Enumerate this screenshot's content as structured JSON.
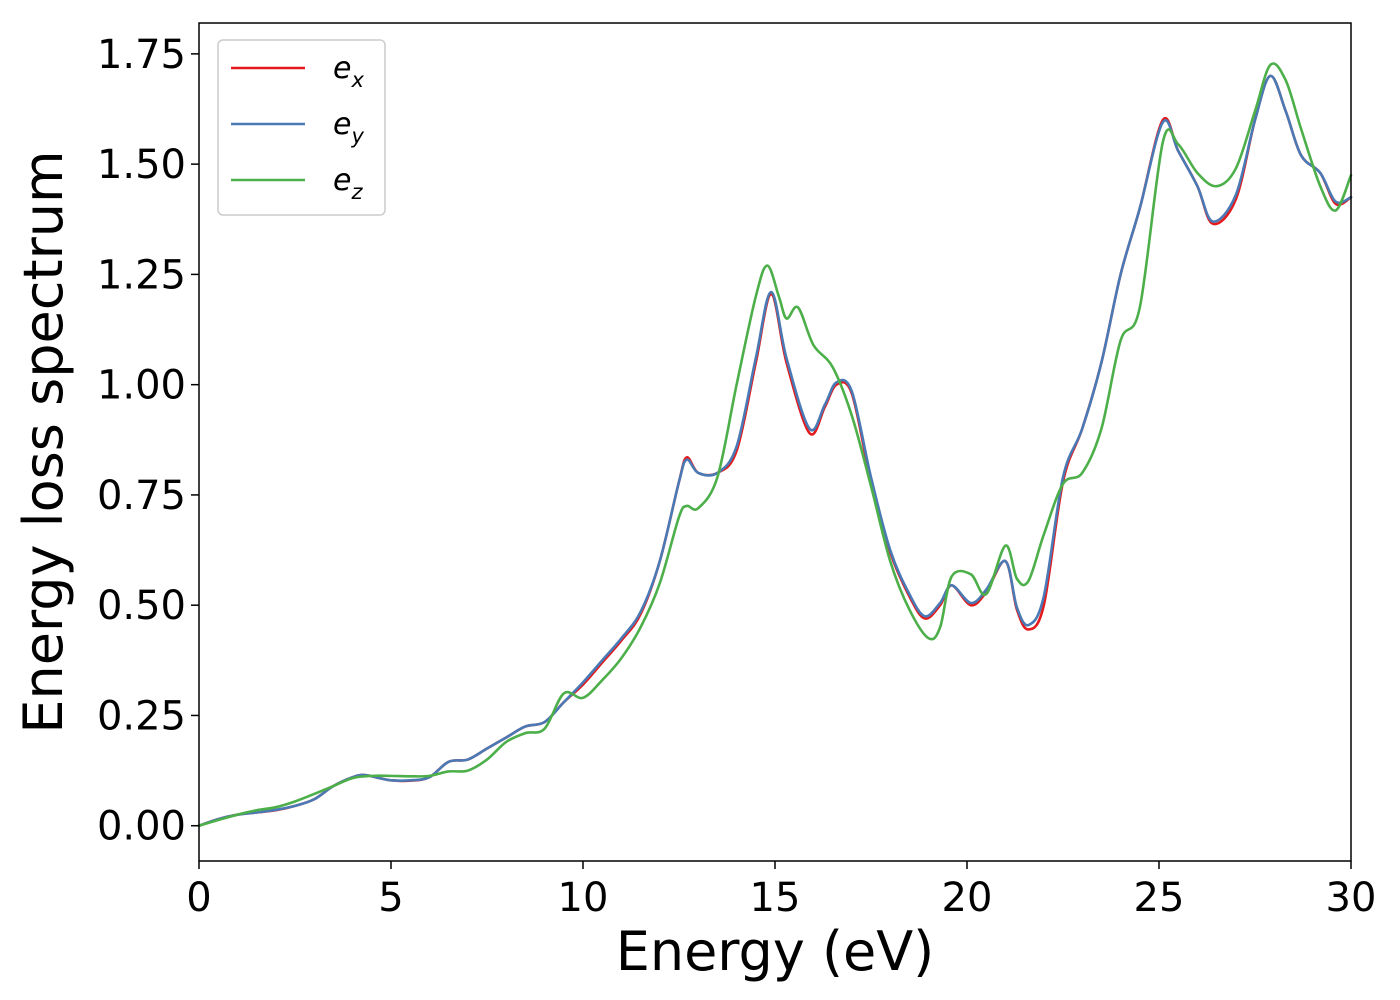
{
  "chart_data": {
    "type": "line",
    "title": "",
    "xlabel": "Energy (eV)",
    "ylabel": "Energy loss spectrum",
    "xlim": [
      0,
      30
    ],
    "ylim": [
      -0.08,
      1.82
    ],
    "xticks": [
      0,
      5,
      10,
      15,
      20,
      25,
      30
    ],
    "xtick_labels": [
      "0",
      "5",
      "10",
      "15",
      "20",
      "25",
      "30"
    ],
    "yticks": [
      0,
      0.25,
      0.5,
      0.75,
      1.0,
      1.25,
      1.5,
      1.75
    ],
    "ytick_labels": [
      "0.00",
      "0.25",
      "0.50",
      "0.75",
      "1.00",
      "1.25",
      "1.50",
      "1.75"
    ],
    "grid": false,
    "legend_position": "top-left",
    "series": [
      {
        "name": "e_x",
        "legend_base": "e",
        "legend_sub": "x",
        "color": "#e41a1c",
        "points": [
          [
            0,
            0
          ],
          [
            0.5,
            0.015
          ],
          [
            1,
            0.025
          ],
          [
            1.5,
            0.03
          ],
          [
            2,
            0.035
          ],
          [
            2.5,
            0.045
          ],
          [
            3,
            0.06
          ],
          [
            3.5,
            0.09
          ],
          [
            4,
            0.11
          ],
          [
            4.3,
            0.115
          ],
          [
            4.7,
            0.108
          ],
          [
            5,
            0.103
          ],
          [
            5.5,
            0.102
          ],
          [
            6,
            0.11
          ],
          [
            6.5,
            0.145
          ],
          [
            7,
            0.15
          ],
          [
            7.5,
            0.175
          ],
          [
            8,
            0.2
          ],
          [
            8.5,
            0.225
          ],
          [
            9,
            0.235
          ],
          [
            9.5,
            0.28
          ],
          [
            10,
            0.32
          ],
          [
            10.5,
            0.37
          ],
          [
            11,
            0.42
          ],
          [
            11.5,
            0.48
          ],
          [
            12,
            0.6
          ],
          [
            12.5,
            0.78
          ],
          [
            12.7,
            0.835
          ],
          [
            13,
            0.8
          ],
          [
            13.5,
            0.8
          ],
          [
            14,
            0.85
          ],
          [
            14.5,
            1.05
          ],
          [
            14.9,
            1.205
          ],
          [
            15.3,
            1.05
          ],
          [
            15.9,
            0.89
          ],
          [
            16.3,
            0.95
          ],
          [
            16.6,
            1.0
          ],
          [
            17,
            0.98
          ],
          [
            17.5,
            0.78
          ],
          [
            18,
            0.62
          ],
          [
            18.5,
            0.52
          ],
          [
            18.9,
            0.47
          ],
          [
            19.3,
            0.5
          ],
          [
            19.6,
            0.545
          ],
          [
            20.1,
            0.5
          ],
          [
            20.5,
            0.53
          ],
          [
            21,
            0.6
          ],
          [
            21.3,
            0.49
          ],
          [
            21.6,
            0.445
          ],
          [
            22,
            0.5
          ],
          [
            22.5,
            0.78
          ],
          [
            23,
            0.9
          ],
          [
            23.5,
            1.05
          ],
          [
            24,
            1.25
          ],
          [
            24.5,
            1.4
          ],
          [
            25.1,
            1.6
          ],
          [
            25.5,
            1.53
          ],
          [
            26,
            1.45
          ],
          [
            26.4,
            1.365
          ],
          [
            27,
            1.42
          ],
          [
            27.5,
            1.6
          ],
          [
            27.9,
            1.7
          ],
          [
            28.3,
            1.62
          ],
          [
            28.7,
            1.52
          ],
          [
            29.2,
            1.48
          ],
          [
            29.6,
            1.41
          ],
          [
            30,
            1.425
          ]
        ]
      },
      {
        "name": "e_y",
        "legend_base": "e",
        "legend_sub": "y",
        "color": "#4a7ab5",
        "points": [
          [
            0,
            0
          ],
          [
            0.5,
            0.015
          ],
          [
            1,
            0.025
          ],
          [
            1.5,
            0.03
          ],
          [
            2,
            0.036
          ],
          [
            2.5,
            0.045
          ],
          [
            3,
            0.06
          ],
          [
            3.5,
            0.09
          ],
          [
            4,
            0.11
          ],
          [
            4.3,
            0.115
          ],
          [
            4.7,
            0.108
          ],
          [
            5,
            0.103
          ],
          [
            5.5,
            0.103
          ],
          [
            6,
            0.11
          ],
          [
            6.5,
            0.145
          ],
          [
            7,
            0.15
          ],
          [
            7.5,
            0.175
          ],
          [
            8,
            0.2
          ],
          [
            8.5,
            0.225
          ],
          [
            9,
            0.235
          ],
          [
            9.5,
            0.28
          ],
          [
            10,
            0.325
          ],
          [
            10.5,
            0.375
          ],
          [
            11,
            0.425
          ],
          [
            11.5,
            0.485
          ],
          [
            12,
            0.6
          ],
          [
            12.5,
            0.78
          ],
          [
            12.7,
            0.83
          ],
          [
            13,
            0.8
          ],
          [
            13.5,
            0.8
          ],
          [
            14,
            0.86
          ],
          [
            14.5,
            1.06
          ],
          [
            14.9,
            1.21
          ],
          [
            15.3,
            1.06
          ],
          [
            15.9,
            0.9
          ],
          [
            16.3,
            0.955
          ],
          [
            16.6,
            1.005
          ],
          [
            17,
            0.985
          ],
          [
            17.5,
            0.79
          ],
          [
            18,
            0.625
          ],
          [
            18.5,
            0.525
          ],
          [
            18.9,
            0.475
          ],
          [
            19.3,
            0.505
          ],
          [
            19.6,
            0.545
          ],
          [
            20.1,
            0.505
          ],
          [
            20.5,
            0.535
          ],
          [
            21,
            0.6
          ],
          [
            21.3,
            0.495
          ],
          [
            21.6,
            0.455
          ],
          [
            22,
            0.52
          ],
          [
            22.5,
            0.79
          ],
          [
            23,
            0.9
          ],
          [
            23.5,
            1.05
          ],
          [
            24,
            1.25
          ],
          [
            24.5,
            1.4
          ],
          [
            25.1,
            1.595
          ],
          [
            25.5,
            1.53
          ],
          [
            26,
            1.45
          ],
          [
            26.4,
            1.37
          ],
          [
            27,
            1.43
          ],
          [
            27.5,
            1.6
          ],
          [
            27.9,
            1.7
          ],
          [
            28.3,
            1.62
          ],
          [
            28.7,
            1.52
          ],
          [
            29.2,
            1.48
          ],
          [
            29.6,
            1.415
          ],
          [
            30,
            1.425
          ]
        ]
      },
      {
        "name": "e_z",
        "legend_base": "e",
        "legend_sub": "z",
        "color": "#4daf4a",
        "points": [
          [
            0,
            0
          ],
          [
            0.5,
            0.013
          ],
          [
            1,
            0.025
          ],
          [
            1.5,
            0.035
          ],
          [
            2,
            0.042
          ],
          [
            2.5,
            0.055
          ],
          [
            3,
            0.072
          ],
          [
            3.5,
            0.09
          ],
          [
            4,
            0.108
          ],
          [
            4.5,
            0.113
          ],
          [
            5,
            0.113
          ],
          [
            5.5,
            0.112
          ],
          [
            6,
            0.113
          ],
          [
            6.5,
            0.123
          ],
          [
            7,
            0.125
          ],
          [
            7.5,
            0.15
          ],
          [
            8,
            0.19
          ],
          [
            8.5,
            0.21
          ],
          [
            9,
            0.22
          ],
          [
            9.5,
            0.3
          ],
          [
            10,
            0.29
          ],
          [
            10.5,
            0.33
          ],
          [
            11,
            0.38
          ],
          [
            11.5,
            0.45
          ],
          [
            12,
            0.55
          ],
          [
            12.5,
            0.7
          ],
          [
            12.7,
            0.725
          ],
          [
            13,
            0.72
          ],
          [
            13.5,
            0.79
          ],
          [
            14,
            1.0
          ],
          [
            14.5,
            1.2
          ],
          [
            14.8,
            1.27
          ],
          [
            15.1,
            1.2
          ],
          [
            15.3,
            1.15
          ],
          [
            15.6,
            1.175
          ],
          [
            16,
            1.09
          ],
          [
            16.5,
            1.04
          ],
          [
            17,
            0.93
          ],
          [
            17.5,
            0.77
          ],
          [
            18,
            0.6
          ],
          [
            18.5,
            0.49
          ],
          [
            19,
            0.425
          ],
          [
            19.3,
            0.45
          ],
          [
            19.6,
            0.565
          ],
          [
            20.1,
            0.57
          ],
          [
            20.5,
            0.525
          ],
          [
            21,
            0.635
          ],
          [
            21.3,
            0.56
          ],
          [
            21.6,
            0.555
          ],
          [
            22,
            0.66
          ],
          [
            22.5,
            0.775
          ],
          [
            23,
            0.8
          ],
          [
            23.5,
            0.9
          ],
          [
            24,
            1.1
          ],
          [
            24.5,
            1.175
          ],
          [
            25.1,
            1.55
          ],
          [
            25.5,
            1.545
          ],
          [
            26,
            1.48
          ],
          [
            26.5,
            1.45
          ],
          [
            27,
            1.49
          ],
          [
            27.5,
            1.62
          ],
          [
            27.9,
            1.725
          ],
          [
            28.3,
            1.69
          ],
          [
            28.7,
            1.58
          ],
          [
            29.2,
            1.45
          ],
          [
            29.6,
            1.395
          ],
          [
            30,
            1.475
          ]
        ]
      }
    ]
  }
}
